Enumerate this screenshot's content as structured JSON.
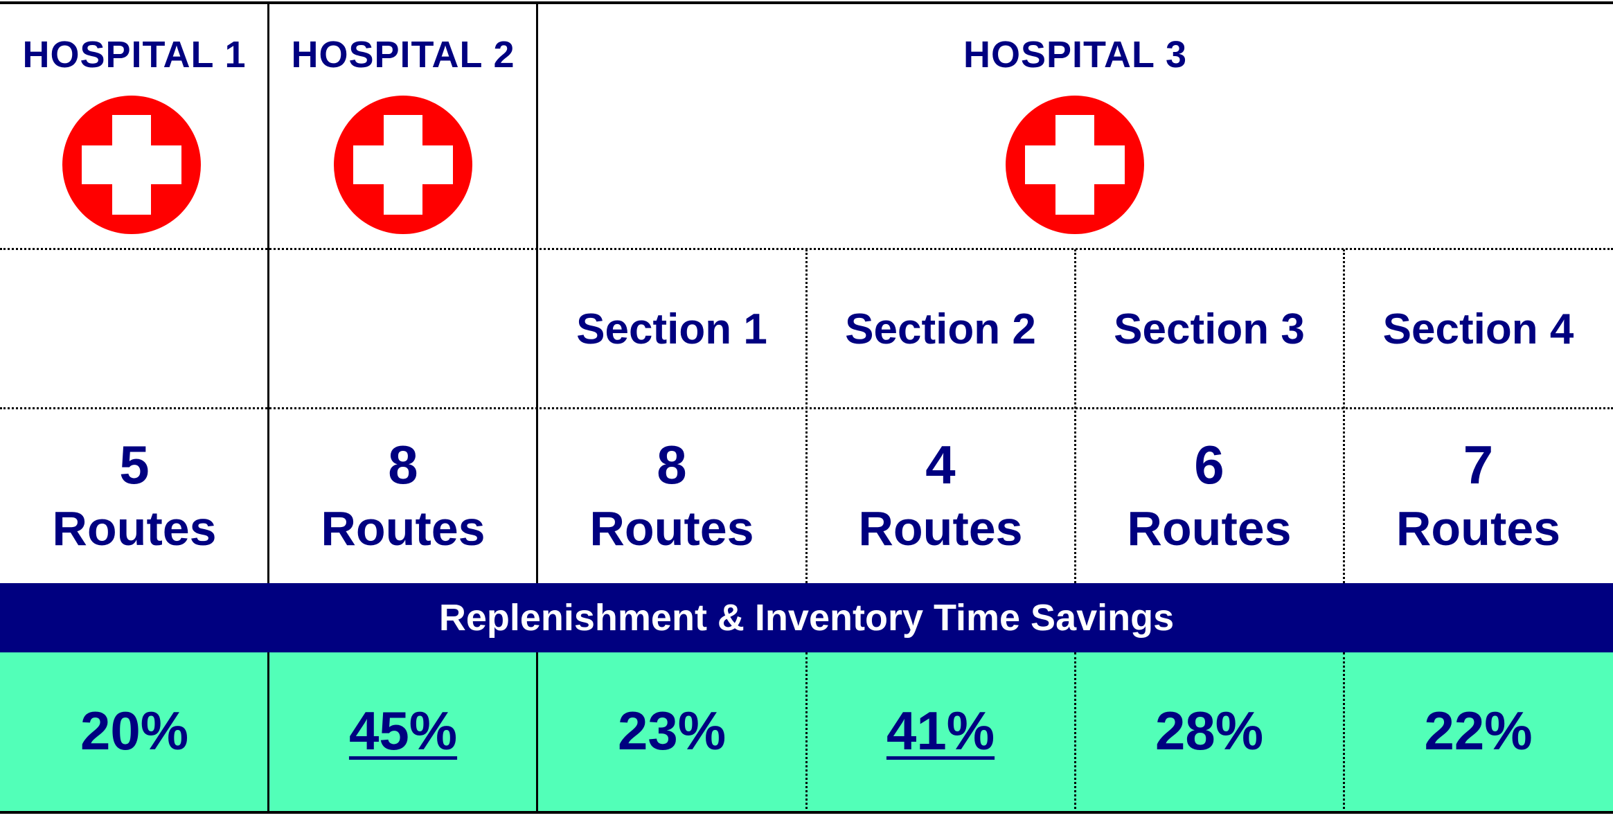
{
  "hospitals": [
    {
      "title": "HOSPITAL 1",
      "icon": "red-cross-icon"
    },
    {
      "title": "HOSPITAL 2",
      "icon": "red-cross-icon"
    },
    {
      "title": "HOSPITAL 3",
      "icon": "red-cross-icon"
    }
  ],
  "sections": [
    "Section 1",
    "Section 2",
    "Section 3",
    "Section 4"
  ],
  "routes": [
    {
      "count": "5",
      "label": "Routes"
    },
    {
      "count": "8",
      "label": "Routes"
    },
    {
      "count": "8",
      "label": "Routes"
    },
    {
      "count": "4",
      "label": "Routes"
    },
    {
      "count": "6",
      "label": "Routes"
    },
    {
      "count": "7",
      "label": "Routes"
    }
  ],
  "banner": "Replenishment & Inventory Time Savings",
  "savings": [
    "20%",
    "45%",
    "23%",
    "41%",
    "28%",
    "22%"
  ],
  "colors": {
    "text": "#000080",
    "banner_bg": "#000080",
    "savings_bg": "#52ffb8",
    "cross_red": "#ff0000"
  }
}
